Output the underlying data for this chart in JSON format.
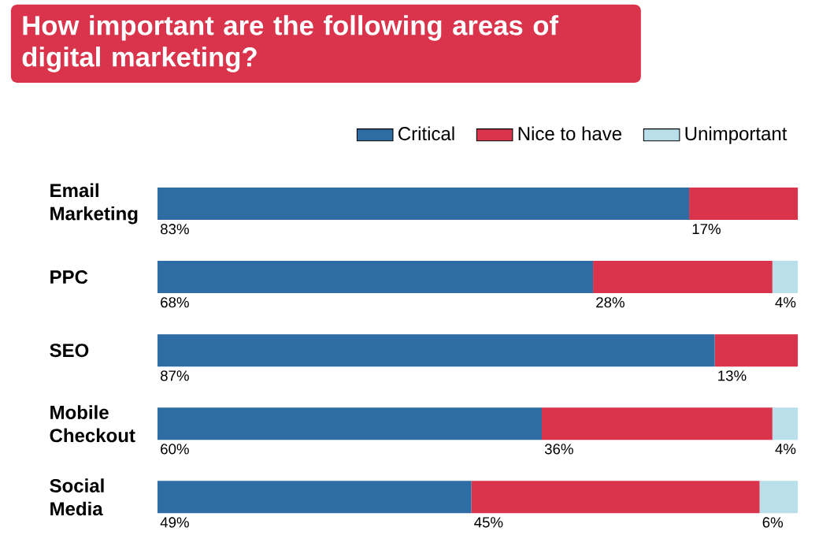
{
  "chart_data": {
    "type": "bar",
    "orientation": "horizontal",
    "stacked": true,
    "title": "How important are the following areas of digital marketing?",
    "categories": [
      "Email Marketing",
      "PPC",
      "SEO",
      "Mobile Checkout",
      "Social Media"
    ],
    "series": [
      {
        "name": "Critical",
        "color": "#2e6ca4",
        "values": [
          83,
          68,
          87,
          60,
          49
        ],
        "value_labels": [
          "83%",
          "68%",
          "87%",
          "60%",
          "49%"
        ]
      },
      {
        "name": "Nice to have",
        "color": "#d9344b",
        "values": [
          17,
          28,
          13,
          36,
          45
        ],
        "value_labels": [
          "17%",
          "28%",
          "13%",
          "36%",
          "45%"
        ]
      },
      {
        "name": "Unimportant",
        "color": "#b9dfea",
        "values": [
          null,
          4,
          null,
          4,
          6
        ],
        "value_labels": [
          null,
          "4%",
          null,
          "4%",
          "6%"
        ]
      }
    ],
    "xlim": [
      0,
      100
    ],
    "tick_labels": "y",
    "legend": "top right"
  }
}
